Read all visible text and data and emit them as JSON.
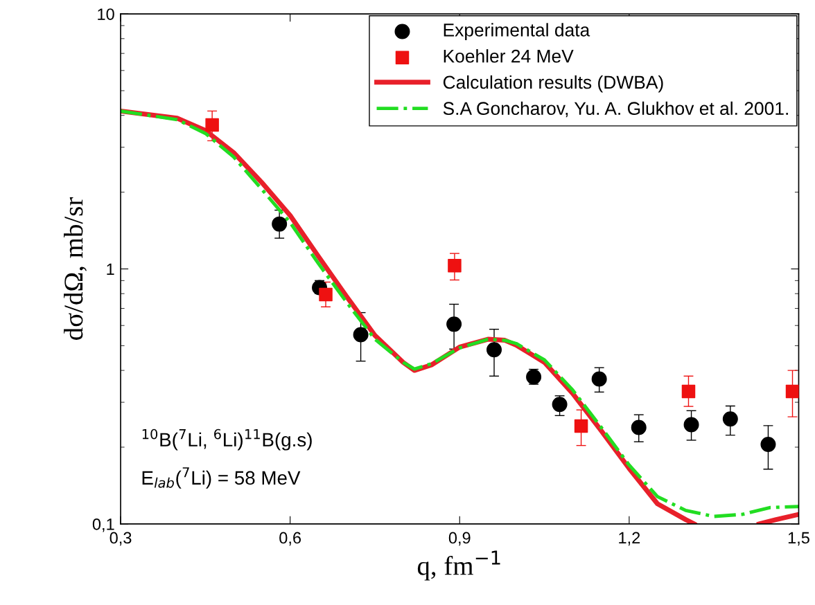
{
  "chart_data": {
    "type": "scatter",
    "xlabel": "q, fm$^{−1}$",
    "ylabel": "dσ/dΩ, mb/sr",
    "log": "y",
    "xlim": [
      0.3,
      1.5
    ],
    "xticks": [
      {
        "value": 0.3,
        "label": "0,3"
      },
      {
        "value": 0.6,
        "label": "0,6"
      },
      {
        "value": 0.9,
        "label": "0,9"
      },
      {
        "value": 1.2,
        "label": "1,2"
      },
      {
        "value": 1.5,
        "label": "1,5"
      }
    ],
    "ylim": [
      0.1,
      10
    ],
    "yticks": [
      {
        "value": 0.1,
        "label": "0,1"
      },
      1,
      10
    ],
    "legend": "top right",
    "grid": false,
    "annotations": [
      "$^{10}$B($^{7}$Li, $^{6}$Li)$^{11}$B(g.s)",
      "E$_{lab}$($^{7}$Li) = 58 MeV"
    ],
    "series": [
      {
        "name": "Experimental data",
        "type": "scatter",
        "marker": "circle",
        "color": "#000000",
        "x": [
          0.581,
          0.652,
          0.725,
          0.89,
          0.961,
          1.031,
          1.077,
          1.147,
          1.217,
          1.31,
          1.379,
          1.446
        ],
        "values": [
          1.5,
          0.845,
          0.552,
          0.607,
          0.482,
          0.377,
          0.294,
          0.37,
          0.239,
          0.245,
          0.258,
          0.205
        ],
        "errors": [
          [
            1.32,
            1.7
          ],
          [
            0.8,
            0.9
          ],
          [
            0.435,
            0.674
          ],
          [
            0.485,
            0.727
          ],
          [
            0.38,
            0.58
          ],
          [
            0.353,
            0.404
          ],
          [
            0.266,
            0.318
          ],
          [
            0.329,
            0.41
          ],
          [
            0.21,
            0.268
          ],
          [
            0.213,
            0.278
          ],
          [
            0.223,
            0.29
          ],
          [
            0.164,
            0.243
          ]
        ]
      },
      {
        "name": "Koehler 24 MeV",
        "type": "scatter",
        "marker": "square",
        "color": "#ee1111",
        "x": [
          0.462,
          0.663,
          0.891,
          1.115,
          1.305,
          1.489
        ],
        "values": [
          3.67,
          0.794,
          1.03,
          0.242,
          0.331,
          0.331
        ],
        "errors": [
          [
            3.18,
            4.16
          ],
          [
            0.71,
            0.888
          ],
          [
            0.905,
            1.15
          ],
          [
            0.203,
            0.28
          ],
          [
            0.289,
            0.38
          ],
          [
            0.263,
            0.4
          ]
        ]
      },
      {
        "name": "Calculation results (DWBA)",
        "type": "line",
        "line_style": "solid",
        "color": "#e8202a",
        "x": [
          0.3,
          0.4,
          0.45,
          0.5,
          0.55,
          0.6,
          0.65,
          0.7,
          0.75,
          0.8,
          0.82,
          0.85,
          0.9,
          0.95,
          0.98,
          1.0,
          1.05,
          1.1,
          1.15,
          1.2,
          1.25,
          1.3,
          1.315,
          1.37,
          1.43,
          1.46,
          1.5
        ],
        "values": [
          4.16,
          3.9,
          3.49,
          2.86,
          2.18,
          1.62,
          1.12,
          0.779,
          0.549,
          0.43,
          0.4,
          0.42,
          0.494,
          0.53,
          0.525,
          0.503,
          0.43,
          0.325,
          0.233,
          0.165,
          0.12,
          0.104,
          0.1,
          null,
          0.1,
          0.104,
          0.109
        ]
      },
      {
        "name": "S.A Goncharov, Yu. A. Glukhov et al. 2001.",
        "type": "line",
        "line_style": "dashdot",
        "color": "#22dd22",
        "x": [
          0.3,
          0.4,
          0.45,
          0.5,
          0.55,
          0.6,
          0.65,
          0.7,
          0.75,
          0.8,
          0.82,
          0.85,
          0.9,
          0.95,
          0.98,
          1.0,
          1.05,
          1.1,
          1.15,
          1.2,
          1.25,
          1.3,
          1.35,
          1.4,
          1.45,
          1.5
        ],
        "values": [
          4.16,
          3.85,
          3.4,
          2.75,
          2.05,
          1.52,
          1.05,
          0.74,
          0.53,
          0.43,
          0.405,
          0.425,
          0.49,
          0.53,
          0.525,
          0.51,
          0.44,
          0.335,
          0.24,
          0.17,
          0.128,
          0.113,
          0.107,
          0.109,
          0.116,
          0.117
        ]
      }
    ]
  }
}
